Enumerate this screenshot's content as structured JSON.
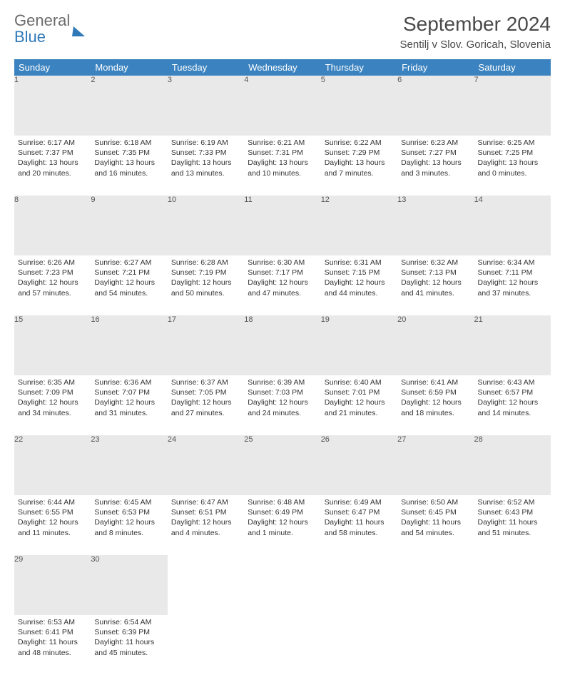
{
  "brand": {
    "line1": "General",
    "line2": "Blue"
  },
  "title": "September 2024",
  "location": "Sentilj v Slov. Goricah, Slovenia",
  "colors": {
    "header_bg": "#3b83c0",
    "header_text": "#ffffff",
    "daynum_bg": "#e9e9e9",
    "day_border": "#2f6fa0",
    "body_text": "#333333",
    "title_text": "#4a4a4a"
  },
  "weekdays": [
    "Sunday",
    "Monday",
    "Tuesday",
    "Wednesday",
    "Thursday",
    "Friday",
    "Saturday"
  ],
  "weeks": [
    [
      {
        "n": "1",
        "sr": "6:17 AM",
        "ss": "7:37 PM",
        "dl": "13 hours and 20 minutes."
      },
      {
        "n": "2",
        "sr": "6:18 AM",
        "ss": "7:35 PM",
        "dl": "13 hours and 16 minutes."
      },
      {
        "n": "3",
        "sr": "6:19 AM",
        "ss": "7:33 PM",
        "dl": "13 hours and 13 minutes."
      },
      {
        "n": "4",
        "sr": "6:21 AM",
        "ss": "7:31 PM",
        "dl": "13 hours and 10 minutes."
      },
      {
        "n": "5",
        "sr": "6:22 AM",
        "ss": "7:29 PM",
        "dl": "13 hours and 7 minutes."
      },
      {
        "n": "6",
        "sr": "6:23 AM",
        "ss": "7:27 PM",
        "dl": "13 hours and 3 minutes."
      },
      {
        "n": "7",
        "sr": "6:25 AM",
        "ss": "7:25 PM",
        "dl": "13 hours and 0 minutes."
      }
    ],
    [
      {
        "n": "8",
        "sr": "6:26 AM",
        "ss": "7:23 PM",
        "dl": "12 hours and 57 minutes."
      },
      {
        "n": "9",
        "sr": "6:27 AM",
        "ss": "7:21 PM",
        "dl": "12 hours and 54 minutes."
      },
      {
        "n": "10",
        "sr": "6:28 AM",
        "ss": "7:19 PM",
        "dl": "12 hours and 50 minutes."
      },
      {
        "n": "11",
        "sr": "6:30 AM",
        "ss": "7:17 PM",
        "dl": "12 hours and 47 minutes."
      },
      {
        "n": "12",
        "sr": "6:31 AM",
        "ss": "7:15 PM",
        "dl": "12 hours and 44 minutes."
      },
      {
        "n": "13",
        "sr": "6:32 AM",
        "ss": "7:13 PM",
        "dl": "12 hours and 41 minutes."
      },
      {
        "n": "14",
        "sr": "6:34 AM",
        "ss": "7:11 PM",
        "dl": "12 hours and 37 minutes."
      }
    ],
    [
      {
        "n": "15",
        "sr": "6:35 AM",
        "ss": "7:09 PM",
        "dl": "12 hours and 34 minutes."
      },
      {
        "n": "16",
        "sr": "6:36 AM",
        "ss": "7:07 PM",
        "dl": "12 hours and 31 minutes."
      },
      {
        "n": "17",
        "sr": "6:37 AM",
        "ss": "7:05 PM",
        "dl": "12 hours and 27 minutes."
      },
      {
        "n": "18",
        "sr": "6:39 AM",
        "ss": "7:03 PM",
        "dl": "12 hours and 24 minutes."
      },
      {
        "n": "19",
        "sr": "6:40 AM",
        "ss": "7:01 PM",
        "dl": "12 hours and 21 minutes."
      },
      {
        "n": "20",
        "sr": "6:41 AM",
        "ss": "6:59 PM",
        "dl": "12 hours and 18 minutes."
      },
      {
        "n": "21",
        "sr": "6:43 AM",
        "ss": "6:57 PM",
        "dl": "12 hours and 14 minutes."
      }
    ],
    [
      {
        "n": "22",
        "sr": "6:44 AM",
        "ss": "6:55 PM",
        "dl": "12 hours and 11 minutes."
      },
      {
        "n": "23",
        "sr": "6:45 AM",
        "ss": "6:53 PM",
        "dl": "12 hours and 8 minutes."
      },
      {
        "n": "24",
        "sr": "6:47 AM",
        "ss": "6:51 PM",
        "dl": "12 hours and 4 minutes."
      },
      {
        "n": "25",
        "sr": "6:48 AM",
        "ss": "6:49 PM",
        "dl": "12 hours and 1 minute."
      },
      {
        "n": "26",
        "sr": "6:49 AM",
        "ss": "6:47 PM",
        "dl": "11 hours and 58 minutes."
      },
      {
        "n": "27",
        "sr": "6:50 AM",
        "ss": "6:45 PM",
        "dl": "11 hours and 54 minutes."
      },
      {
        "n": "28",
        "sr": "6:52 AM",
        "ss": "6:43 PM",
        "dl": "11 hours and 51 minutes."
      }
    ],
    [
      {
        "n": "29",
        "sr": "6:53 AM",
        "ss": "6:41 PM",
        "dl": "11 hours and 48 minutes."
      },
      {
        "n": "30",
        "sr": "6:54 AM",
        "ss": "6:39 PM",
        "dl": "11 hours and 45 minutes."
      },
      null,
      null,
      null,
      null,
      null
    ]
  ],
  "labels": {
    "sunrise": "Sunrise:",
    "sunset": "Sunset:",
    "daylight": "Daylight:"
  }
}
